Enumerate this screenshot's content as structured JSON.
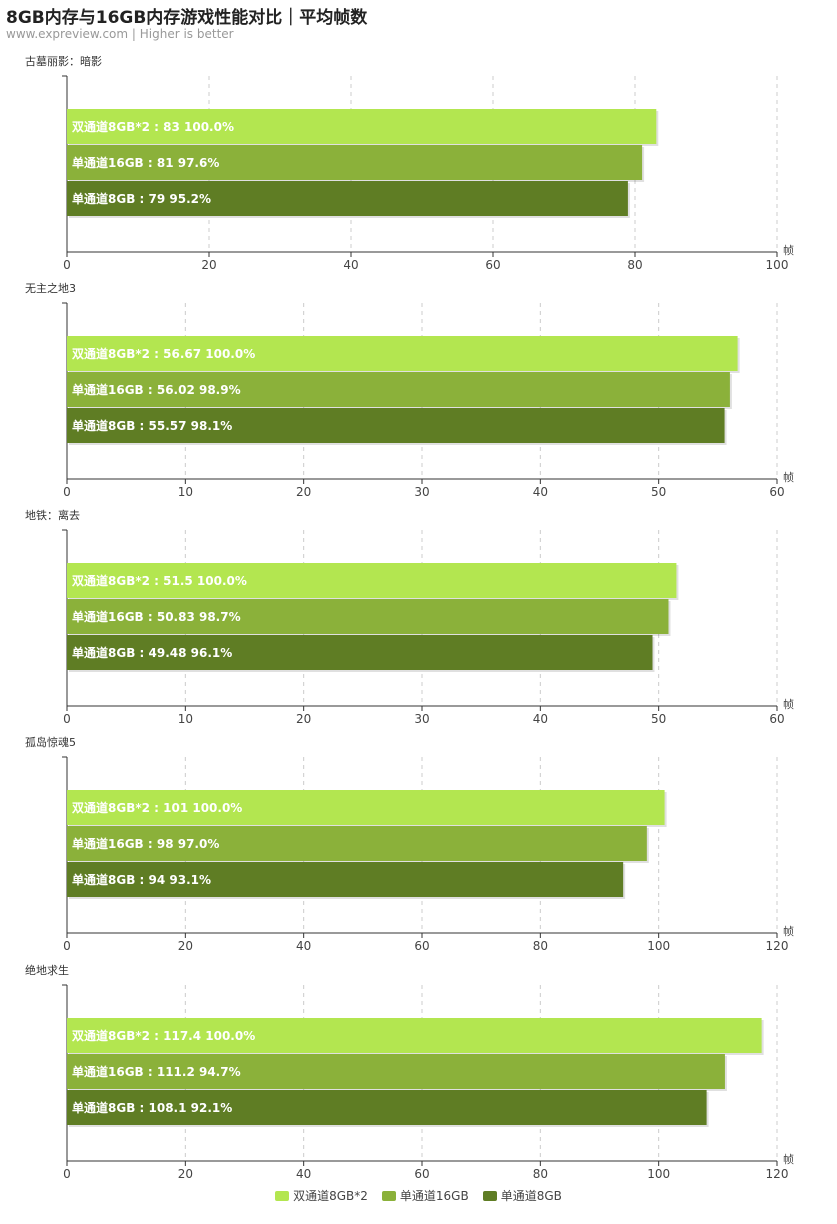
{
  "header": {
    "title": "8GB内存与16GB内存游戏性能对比｜平均帧数",
    "subtitle": "www.expreview.com | Higher is better"
  },
  "colors": {
    "series": [
      "#b3e650",
      "#8bb13a",
      "#5f7d24"
    ],
    "axis": "#333333",
    "grid": "#cccccc"
  },
  "legend": {
    "items": [
      "双通道8GB*2",
      "单通道16GB",
      "单通道8GB"
    ]
  },
  "chart_data": [
    {
      "type": "bar",
      "orientation": "horizontal",
      "title": "古墓丽影：暗影",
      "unit_label": "帧",
      "xlim": [
        0,
        100
      ],
      "ticks": [
        "0",
        "20",
        "40",
        "60",
        "80",
        "100"
      ],
      "grid": true,
      "legend_position": "bottom",
      "series": [
        {
          "name": "双通道8GB*2",
          "value": 83,
          "percent": "100.0%",
          "label": "双通道8GB*2 : 83  100.0%"
        },
        {
          "name": "单通道16GB",
          "value": 81,
          "percent": "97.6%",
          "label": "单通道16GB : 81  97.6%"
        },
        {
          "name": "单通道8GB",
          "value": 79,
          "percent": "95.2%",
          "label": "单通道8GB : 79  95.2%"
        }
      ]
    },
    {
      "type": "bar",
      "orientation": "horizontal",
      "title": "无主之地3",
      "unit_label": "帧",
      "xlim": [
        0,
        60
      ],
      "ticks": [
        "0",
        "10",
        "20",
        "30",
        "40",
        "50",
        "60"
      ],
      "grid": true,
      "legend_position": "bottom",
      "series": [
        {
          "name": "双通道8GB*2",
          "value": 56.67,
          "percent": "100.0%",
          "label": "双通道8GB*2 : 56.67  100.0%"
        },
        {
          "name": "单通道16GB",
          "value": 56.02,
          "percent": "98.9%",
          "label": "单通道16GB : 56.02  98.9%"
        },
        {
          "name": "单通道8GB",
          "value": 55.57,
          "percent": "98.1%",
          "label": "单通道8GB : 55.57  98.1%"
        }
      ]
    },
    {
      "type": "bar",
      "orientation": "horizontal",
      "title": "地铁：离去",
      "unit_label": "帧",
      "xlim": [
        0,
        60
      ],
      "ticks": [
        "0",
        "10",
        "20",
        "30",
        "40",
        "50",
        "60"
      ],
      "grid": true,
      "legend_position": "bottom",
      "series": [
        {
          "name": "双通道8GB*2",
          "value": 51.5,
          "percent": "100.0%",
          "label": "双通道8GB*2 : 51.5  100.0%"
        },
        {
          "name": "单通道16GB",
          "value": 50.83,
          "percent": "98.7%",
          "label": "单通道16GB : 50.83  98.7%"
        },
        {
          "name": "单通道8GB",
          "value": 49.48,
          "percent": "96.1%",
          "label": "单通道8GB : 49.48  96.1%"
        }
      ]
    },
    {
      "type": "bar",
      "orientation": "horizontal",
      "title": "孤岛惊魂5",
      "unit_label": "帧",
      "xlim": [
        0,
        120
      ],
      "ticks": [
        "0",
        "20",
        "40",
        "60",
        "80",
        "100",
        "120"
      ],
      "grid": true,
      "legend_position": "bottom",
      "series": [
        {
          "name": "双通道8GB*2",
          "value": 101,
          "percent": "100.0%",
          "label": "双通道8GB*2 : 101  100.0%"
        },
        {
          "name": "单通道16GB",
          "value": 98,
          "percent": "97.0%",
          "label": "单通道16GB : 98  97.0%"
        },
        {
          "name": "单通道8GB",
          "value": 94,
          "percent": "93.1%",
          "label": "单通道8GB : 94  93.1%"
        }
      ]
    },
    {
      "type": "bar",
      "orientation": "horizontal",
      "title": "绝地求生",
      "unit_label": "帧",
      "xlim": [
        0,
        120
      ],
      "ticks": [
        "0",
        "20",
        "40",
        "60",
        "80",
        "100",
        "120"
      ],
      "grid": true,
      "legend_position": "bottom",
      "series": [
        {
          "name": "双通道8GB*2",
          "value": 117.4,
          "percent": "100.0%",
          "label": "双通道8GB*2 : 117.4  100.0%"
        },
        {
          "name": "单通道16GB",
          "value": 111.2,
          "percent": "94.7%",
          "label": "单通道16GB : 111.2  94.7%"
        },
        {
          "name": "单通道8GB",
          "value": 108.1,
          "percent": "92.1%",
          "label": "单通道8GB : 108.1  92.1%"
        }
      ]
    }
  ]
}
